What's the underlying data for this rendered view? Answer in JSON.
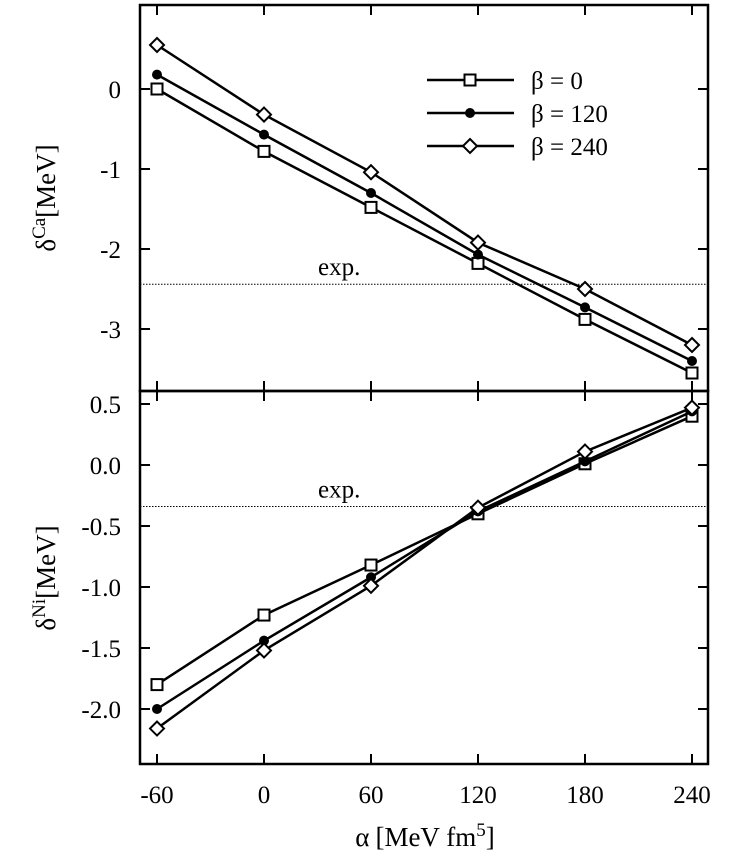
{
  "chart_data": [
    {
      "type": "line",
      "panel": "top",
      "ylabel": {
        "symbol": "δ",
        "superscript": "Ca",
        "unit": "[MeV]"
      },
      "x": [
        -60,
        0,
        60,
        120,
        180,
        240
      ],
      "ylim": [
        -3.55,
        0.6
      ],
      "yticks": [
        0,
        -1,
        -2,
        -3
      ],
      "ytick_labels": [
        "0",
        "-1",
        "-2",
        "-3"
      ],
      "series": [
        {
          "name": "β = 0",
          "marker": "open-square",
          "values": [
            0.0,
            -0.78,
            -1.48,
            -2.18,
            -2.88,
            -3.55
          ]
        },
        {
          "name": "β = 120",
          "marker": "filled-circle",
          "values": [
            0.18,
            -0.57,
            -1.3,
            -2.07,
            -2.73,
            -3.4
          ]
        },
        {
          "name": "β = 240",
          "marker": "open-diamond",
          "values": [
            0.55,
            -0.32,
            -1.04,
            -1.92,
            -2.5,
            -3.2
          ]
        }
      ],
      "exp": {
        "label": "exp.",
        "value": -2.44
      },
      "legend": "top-right"
    },
    {
      "type": "line",
      "panel": "bottom",
      "ylabel": {
        "symbol": "δ",
        "superscript": "Ni",
        "unit": "[MeV]"
      },
      "xlabel": {
        "symbol": "α",
        "unit": "[MeV fm",
        "superscript": "5",
        "close": "]"
      },
      "x": [
        -60,
        0,
        60,
        120,
        180,
        240
      ],
      "xtick_labels": [
        "-60",
        "0",
        "60",
        "120",
        "180",
        "240"
      ],
      "ylim": [
        -2.3,
        0.6
      ],
      "yticks": [
        0.5,
        0.0,
        -0.5,
        -1.0,
        -1.5,
        -2.0
      ],
      "ytick_labels": [
        "0.5",
        "0.0",
        "-0.5",
        "-1.0",
        "-1.5",
        "-2.0"
      ],
      "series": [
        {
          "name": "β = 0",
          "marker": "open-square",
          "values": [
            -1.8,
            -1.23,
            -0.82,
            -0.4,
            0.01,
            0.4
          ]
        },
        {
          "name": "β = 120",
          "marker": "filled-circle",
          "values": [
            -2.0,
            -1.44,
            -0.92,
            -0.38,
            0.03,
            0.44
          ]
        },
        {
          "name": "β = 240",
          "marker": "open-diamond",
          "values": [
            -2.16,
            -1.52,
            -0.99,
            -0.35,
            0.11,
            0.47
          ]
        }
      ],
      "exp": {
        "label": "exp.",
        "value": -0.34
      }
    }
  ]
}
